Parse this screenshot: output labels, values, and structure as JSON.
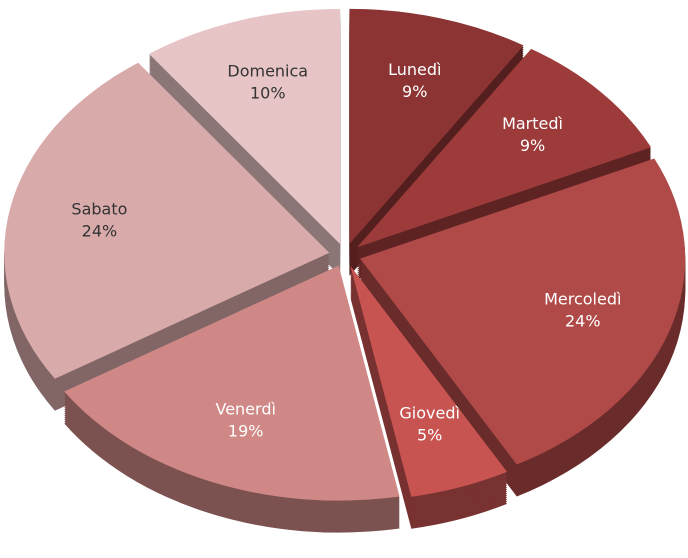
{
  "chart_data": {
    "type": "pie",
    "categories": [
      "Lunedì",
      "Martedì",
      "Mercoledì",
      "Giovedì",
      "Venerdì",
      "Sabato",
      "Domenica"
    ],
    "values": [
      9,
      9,
      24,
      5,
      19,
      24,
      10
    ],
    "value_labels": [
      "9%",
      "9%",
      "24%",
      "5%",
      "19%",
      "24%",
      "10%"
    ],
    "colors": [
      "#8c3434",
      "#9d3b3b",
      "#b04a48",
      "#c85452",
      "#cf8886",
      "#d9aaaa",
      "#e7c5c7"
    ]
  }
}
